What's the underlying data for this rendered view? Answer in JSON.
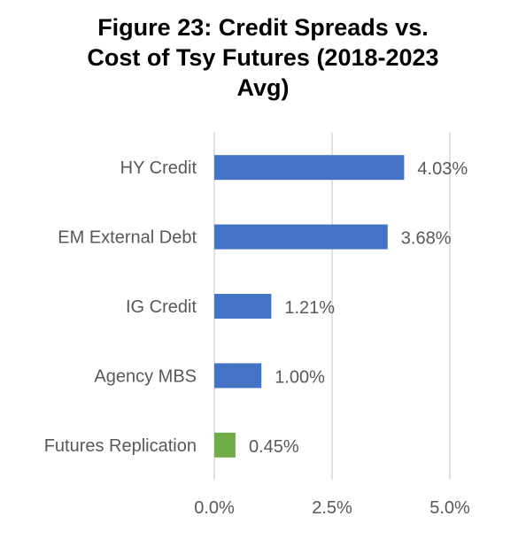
{
  "chart_data": {
    "type": "bar",
    "orientation": "horizontal",
    "title_lines": [
      "Figure 23: Credit Spreads vs.",
      "Cost of Tsy Futures (2018-2023",
      "Avg)"
    ],
    "categories": [
      "HY Credit",
      "EM External Debt",
      "IG Credit",
      "Agency MBS",
      "Futures Replication"
    ],
    "values": [
      4.03,
      3.68,
      1.21,
      1.0,
      0.45
    ],
    "data_labels": [
      "4.03%",
      "3.68%",
      "1.21%",
      "1.00%",
      "0.45%"
    ],
    "bar_colors": [
      "#4472C4",
      "#4472C4",
      "#4472C4",
      "#4472C4",
      "#70AD47"
    ],
    "xlim": [
      0,
      5.0
    ],
    "x_ticks": [
      0,
      2.5,
      5.0
    ],
    "x_tick_labels": [
      "0.0%",
      "2.5%",
      "5.0%"
    ],
    "grid": "vertical",
    "gridline_color": "#d9d9d9",
    "label_color": "#595959"
  }
}
